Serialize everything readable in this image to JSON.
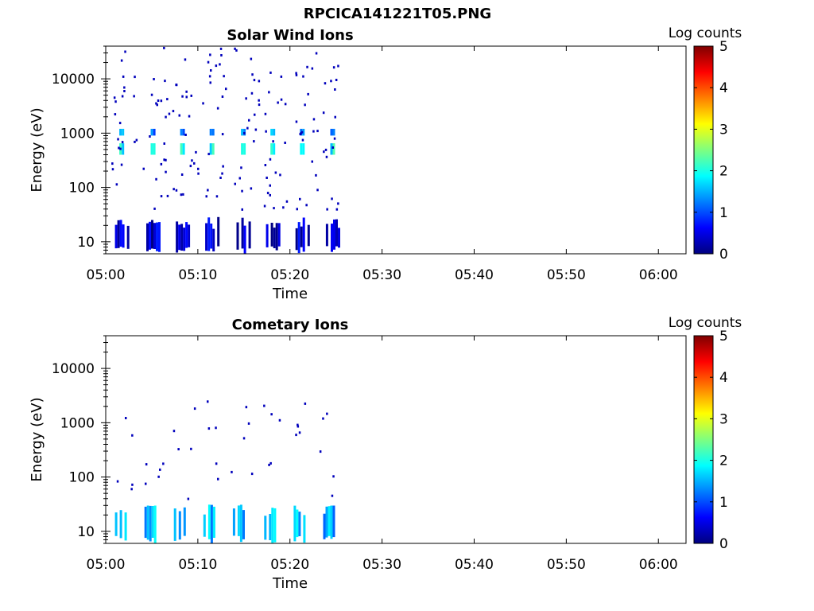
{
  "figure": {
    "title": "RPCICA141221T05.PNG"
  },
  "colors": {
    "colormap": [
      "#00007f",
      "#0000ff",
      "#007fff",
      "#00ffff",
      "#7fff7f",
      "#ffff00",
      "#ff7f00",
      "#ff0000",
      "#7f0000"
    ],
    "axes": "#000000",
    "background": "#ffffff"
  },
  "chart_data": [
    {
      "type": "heatmap",
      "title": "Solar Wind Ions",
      "xlabel": "Time",
      "ylabel": "Energy (eV)",
      "xlim": [
        "05:00",
        "06:03"
      ],
      "xticks": [
        "05:00",
        "05:10",
        "05:20",
        "05:30",
        "05:40",
        "05:50",
        "06:00"
      ],
      "ylim": [
        6,
        40000
      ],
      "yscale": "log",
      "yticks": [
        "10",
        "100",
        "1000",
        "10000"
      ],
      "ytick_values": [
        10,
        100,
        1000,
        10000
      ],
      "colorbar": {
        "label": "Log counts",
        "range": [
          0,
          5
        ],
        "ticks": [
          "0",
          "1",
          "2",
          "3",
          "4",
          "5"
        ]
      },
      "grid": false,
      "sweep_start_minutes": [
        1.0,
        4.4,
        7.6,
        10.8,
        14.2,
        17.4,
        20.6,
        23.9
      ],
      "sweep_duration_minutes": 1.6,
      "data_end_minutes": 25.6,
      "bands": [
        {
          "e_min": 6,
          "e_max": 24,
          "log_counts": 0.4,
          "description": "low-energy block per sweep"
        },
        {
          "e_min": 900,
          "e_max": 1200,
          "log_counts": 1.3
        },
        {
          "e_min": 400,
          "e_max": 650,
          "log_counts": 1.9
        }
      ],
      "scatter_range_ev": [
        40,
        40000
      ],
      "scatter_log_counts": 0.3
    },
    {
      "type": "heatmap",
      "title": "Cometary Ions",
      "xlabel": "Time",
      "ylabel": "Energy (eV)",
      "xlim": [
        "05:00",
        "06:03"
      ],
      "xticks": [
        "05:00",
        "05:10",
        "05:20",
        "05:30",
        "05:40",
        "05:50",
        "06:00"
      ],
      "ylim": [
        6,
        40000
      ],
      "yscale": "log",
      "yticks": [
        "10",
        "100",
        "1000",
        "10000"
      ],
      "ytick_values": [
        10,
        100,
        1000,
        10000
      ],
      "colorbar": {
        "label": "Log counts",
        "range": [
          0,
          5
        ],
        "ticks": [
          "0",
          "1",
          "2",
          "3",
          "4",
          "5"
        ]
      },
      "grid": false,
      "sweep_start_minutes": [
        1.0,
        4.2,
        7.4,
        10.6,
        13.8,
        17.2,
        20.4,
        23.6
      ],
      "sweep_duration_minutes": 1.4,
      "data_end_minutes": 25.0,
      "bands": [
        {
          "e_min": 6,
          "e_max": 26,
          "log_counts": 1.5,
          "description": "low-energy block per sweep"
        }
      ],
      "scatter_range_ev": [
        40,
        3000
      ],
      "scatter_log_counts": 0.3
    }
  ]
}
